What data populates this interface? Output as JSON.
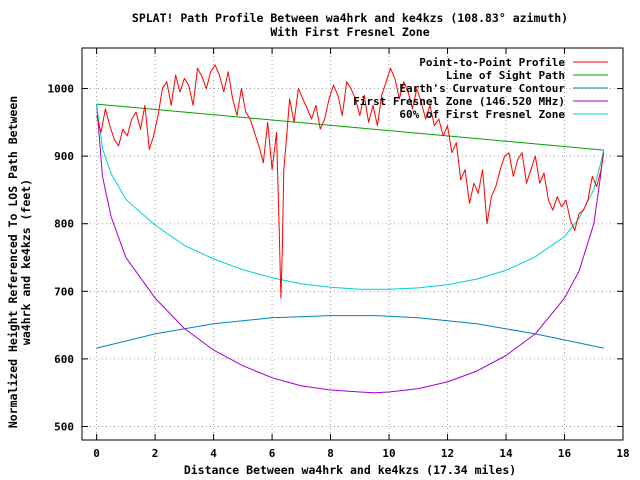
{
  "chart_data": {
    "type": "line",
    "title": "SPLAT! Path Profile Between wa4hrk and ke4kzs (108.83° azimuth)",
    "subtitle": "With First Fresnel Zone",
    "xlabel": "Distance Between wa4hrk and ke4kzs (17.34 miles)",
    "ylabel_line1": "Normalized Height Referenced To LOS Path Between",
    "ylabel_line2": "wa4hrk and ke4kzs (feet)",
    "xlim": [
      -0.5,
      18
    ],
    "ylim": [
      480,
      1060
    ],
    "x_ticks": [
      0,
      2,
      4,
      6,
      8,
      10,
      12,
      14,
      16,
      18
    ],
    "y_ticks": [
      500,
      600,
      700,
      800,
      900,
      1000
    ],
    "grid": true,
    "legend_position": "top-right",
    "series": [
      {
        "name": "Point-to-Point Profile",
        "color": "#ff0000",
        "x": [
          0,
          0.15,
          0.3,
          0.45,
          0.6,
          0.75,
          0.9,
          1.05,
          1.2,
          1.35,
          1.5,
          1.65,
          1.8,
          1.95,
          2.1,
          2.25,
          2.4,
          2.55,
          2.7,
          2.85,
          3.0,
          3.15,
          3.3,
          3.45,
          3.6,
          3.75,
          3.9,
          4.05,
          4.2,
          4.35,
          4.5,
          4.65,
          4.8,
          4.95,
          5.1,
          5.25,
          5.4,
          5.55,
          5.7,
          5.85,
          6.0,
          6.15,
          6.25,
          6.3,
          6.35,
          6.4,
          6.5,
          6.6,
          6.75,
          6.9,
          7.05,
          7.2,
          7.35,
          7.5,
          7.65,
          7.8,
          7.95,
          8.1,
          8.25,
          8.4,
          8.55,
          8.7,
          8.85,
          9.0,
          9.15,
          9.3,
          9.45,
          9.6,
          9.75,
          9.9,
          10.05,
          10.2,
          10.35,
          10.5,
          10.65,
          10.8,
          10.95,
          11.1,
          11.25,
          11.4,
          11.55,
          11.7,
          11.85,
          12.0,
          12.15,
          12.3,
          12.45,
          12.6,
          12.75,
          12.9,
          13.05,
          13.2,
          13.35,
          13.5,
          13.65,
          13.8,
          13.95,
          14.1,
          14.25,
          14.4,
          14.55,
          14.7,
          14.85,
          15.0,
          15.15,
          15.3,
          15.45,
          15.6,
          15.75,
          15.9,
          16.05,
          16.2,
          16.35,
          16.5,
          16.65,
          16.8,
          16.95,
          17.1,
          17.25,
          17.34
        ],
        "values": [
          960,
          935,
          970,
          945,
          925,
          915,
          940,
          930,
          955,
          965,
          940,
          975,
          910,
          930,
          960,
          1000,
          1010,
          975,
          1020,
          995,
          1015,
          1005,
          975,
          1030,
          1018,
          1000,
          1025,
          1035,
          1020,
          995,
          1025,
          985,
          960,
          1000,
          965,
          955,
          935,
          915,
          890,
          950,
          880,
          935,
          780,
          690,
          760,
          880,
          930,
          985,
          950,
          1000,
          985,
          970,
          955,
          975,
          940,
          955,
          985,
          1005,
          990,
          960,
          1010,
          1000,
          985,
          960,
          990,
          950,
          975,
          945,
          990,
          1010,
          1030,
          1015,
          985,
          1010,
          995,
          970,
          1000,
          980,
          955,
          975,
          945,
          955,
          930,
          945,
          905,
          920,
          865,
          880,
          830,
          860,
          845,
          880,
          800,
          840,
          855,
          880,
          900,
          905,
          870,
          895,
          905,
          860,
          880,
          900,
          860,
          875,
          835,
          820,
          840,
          825,
          835,
          805,
          790,
          815,
          820,
          835,
          870,
          855,
          880,
          905
        ]
      },
      {
        "name": "Line of Sight Path",
        "color": "#00a000",
        "x": [
          0,
          17.34
        ],
        "values": [
          977,
          909
        ]
      },
      {
        "name": "Earth's Curvature Contour",
        "color": "#0080c0",
        "x": [
          0,
          2,
          4,
          6,
          8,
          9.5,
          11,
          13,
          15,
          17.34
        ],
        "values": [
          616,
          637,
          652,
          661,
          664,
          664,
          661,
          652,
          637,
          616
        ]
      },
      {
        "name": "First Fresnel Zone (146.520 MHz)",
        "color": "#a000d0",
        "x": [
          0,
          0.2,
          0.5,
          1,
          2,
          3,
          4,
          5,
          6,
          7,
          8,
          9,
          9.5,
          10,
          11,
          12,
          13,
          14,
          15,
          16,
          16.5,
          17,
          17.2,
          17.34
        ],
        "values": [
          977,
          870,
          810,
          750,
          690,
          645,
          613,
          590,
          572,
          560,
          554,
          551,
          550,
          551,
          556,
          566,
          582,
          605,
          637,
          690,
          730,
          800,
          860,
          909
        ]
      },
      {
        "name": "60% of First Fresnel Zone",
        "color": "#00d0d0",
        "x": [
          0,
          0.2,
          0.5,
          1,
          2,
          3,
          4,
          5,
          6,
          7,
          8,
          9,
          9.5,
          10,
          11,
          12,
          13,
          14,
          15,
          16,
          16.5,
          17,
          17.2,
          17.34
        ],
        "values": [
          977,
          911,
          874,
          836,
          798,
          768,
          748,
          732,
          720,
          711,
          706,
          703,
          703,
          703,
          705,
          710,
          718,
          731,
          751,
          781,
          808,
          851,
          883,
          909
        ]
      }
    ]
  }
}
